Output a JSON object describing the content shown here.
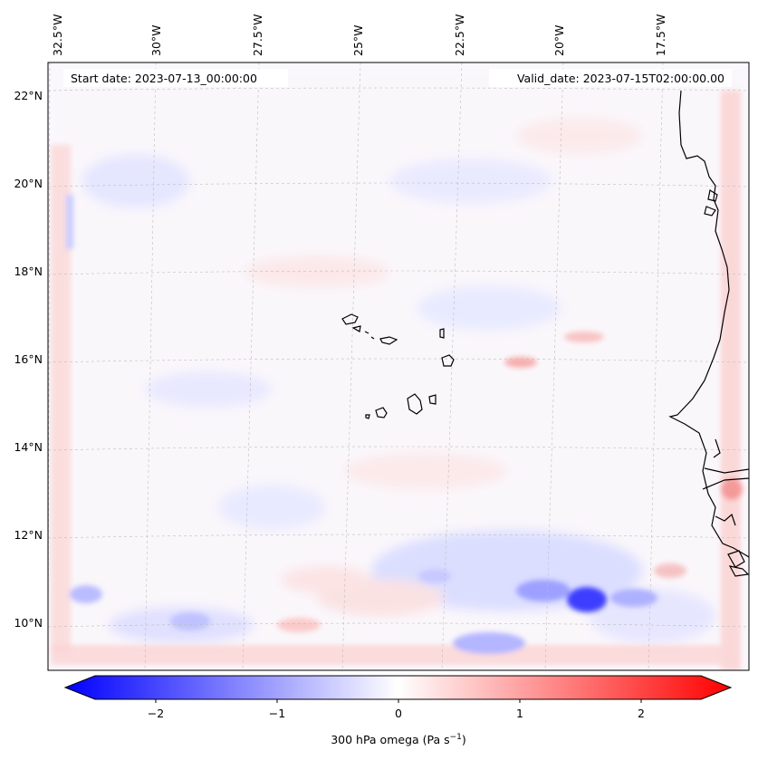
{
  "map": {
    "start_label": "Start date: 2023-07-13_00:00:00",
    "valid_label": "Valid_date: 2023-07-15T02:00:00.00",
    "lon_labels": [
      "32.5°W",
      "30°W",
      "27.5°W",
      "25°W",
      "22.5°W",
      "20°W",
      "17.5°W"
    ],
    "lat_labels": [
      "22°N",
      "20°N",
      "18°N",
      "16°N",
      "14°N",
      "12°N",
      "10°N"
    ],
    "field": "300 hPa omega",
    "colors": {
      "negative": "#0000ff",
      "zero": "#ffffff",
      "positive": "#ff0000",
      "coast": "#000000"
    }
  },
  "colorbar": {
    "label_main": "300 hPa omega (Pa s",
    "label_sup": "−1",
    "label_end": ")",
    "ticks": [
      "−2",
      "−1",
      "0",
      "1",
      "2"
    ],
    "range": [
      -2.7,
      2.7
    ]
  }
}
